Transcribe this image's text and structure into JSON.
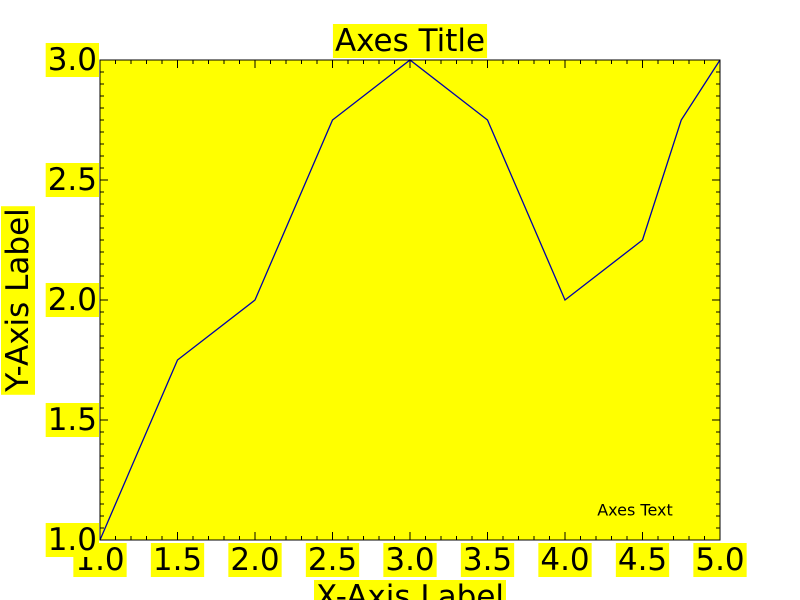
{
  "chart_data": {
    "type": "line",
    "title": "Axes Title",
    "xlabel": "X-Axis Label",
    "ylabel": "Y-Axis Label",
    "annotation": "Axes Text",
    "xlim": [
      1.0,
      5.0
    ],
    "ylim": [
      1.0,
      3.0
    ],
    "x_ticks": [
      "1.0",
      "1.5",
      "2.0",
      "2.5",
      "3.0",
      "3.5",
      "4.0",
      "4.5",
      "5.0"
    ],
    "y_ticks": [
      "1.0",
      "1.5",
      "2.0",
      "2.5",
      "3.0"
    ],
    "grid": false,
    "series": [
      {
        "x": [
          1.0,
          1.5,
          2.0,
          2.5,
          3.0,
          3.5,
          4.0,
          4.5,
          4.75,
          5.0
        ],
        "y": [
          1.0,
          1.75,
          2.0,
          2.75,
          3.0,
          2.75,
          2.0,
          2.25,
          2.75,
          3.0
        ]
      }
    ]
  },
  "colors": {
    "background": "#ffff00",
    "line": "#0000aa",
    "text": "#000000",
    "axes": "#000000"
  }
}
